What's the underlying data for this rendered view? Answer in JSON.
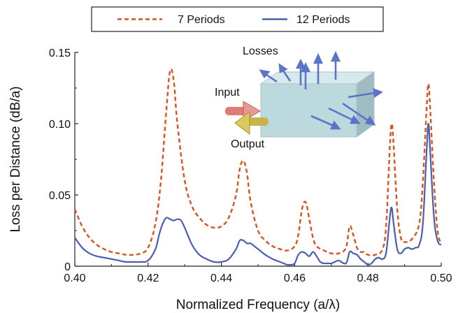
{
  "chart_data": {
    "type": "line",
    "title": "",
    "xlabel": "Normalized Frequency (a/λ)",
    "ylabel": "Loss per Distance (dB/a)",
    "xlim": [
      0.4,
      0.5
    ],
    "ylim": [
      0,
      0.15
    ],
    "xticks": [
      "0.40",
      "0.42",
      "0.44",
      "0.46",
      "0.48",
      "0.50"
    ],
    "yticks": [
      "0",
      "0.05",
      "0.10",
      "0.15"
    ],
    "grid": false,
    "legend_position": "top",
    "series": [
      {
        "name": "7 Periods",
        "color": "#d9531e",
        "style": "dashed",
        "x": [
          0.4,
          0.402,
          0.404,
          0.406,
          0.408,
          0.41,
          0.412,
          0.414,
          0.416,
          0.418,
          0.42,
          0.422,
          0.4235,
          0.425,
          0.426,
          0.427,
          0.428,
          0.43,
          0.432,
          0.434,
          0.436,
          0.438,
          0.44,
          0.442,
          0.444,
          0.445,
          0.446,
          0.447,
          0.448,
          0.45,
          0.452,
          0.454,
          0.456,
          0.458,
          0.46,
          0.461,
          0.462,
          0.463,
          0.464,
          0.465,
          0.466,
          0.468,
          0.47,
          0.472,
          0.474,
          0.475,
          0.476,
          0.477,
          0.478,
          0.479,
          0.48,
          0.482,
          0.484,
          0.485,
          0.486,
          0.4865,
          0.487,
          0.488,
          0.489,
          0.49,
          0.492,
          0.494,
          0.495,
          0.496,
          0.4965,
          0.497,
          0.498,
          0.499,
          0.5
        ],
        "y": [
          0.04,
          0.028,
          0.02,
          0.015,
          0.012,
          0.01,
          0.009,
          0.008,
          0.008,
          0.009,
          0.013,
          0.03,
          0.06,
          0.11,
          0.137,
          0.13,
          0.1,
          0.06,
          0.042,
          0.034,
          0.029,
          0.027,
          0.028,
          0.034,
          0.05,
          0.068,
          0.074,
          0.065,
          0.045,
          0.025,
          0.018,
          0.014,
          0.012,
          0.011,
          0.014,
          0.022,
          0.04,
          0.045,
          0.033,
          0.02,
          0.014,
          0.011,
          0.009,
          0.009,
          0.013,
          0.028,
          0.022,
          0.013,
          0.01,
          0.01,
          0.008,
          0.008,
          0.012,
          0.03,
          0.085,
          0.1,
          0.085,
          0.04,
          0.02,
          0.017,
          0.019,
          0.03,
          0.06,
          0.11,
          0.128,
          0.11,
          0.06,
          0.025,
          0.016
        ]
      },
      {
        "name": "12 Periods",
        "color": "#4a5db0",
        "style": "solid",
        "x": [
          0.4,
          0.402,
          0.404,
          0.406,
          0.408,
          0.41,
          0.412,
          0.414,
          0.416,
          0.418,
          0.42,
          0.422,
          0.423,
          0.424,
          0.425,
          0.426,
          0.427,
          0.428,
          0.429,
          0.43,
          0.432,
          0.434,
          0.436,
          0.438,
          0.44,
          0.442,
          0.444,
          0.445,
          0.446,
          0.447,
          0.448,
          0.449,
          0.45,
          0.452,
          0.454,
          0.456,
          0.457,
          0.458,
          0.459,
          0.46,
          0.461,
          0.462,
          0.463,
          0.464,
          0.465,
          0.466,
          0.467,
          0.468,
          0.469,
          0.47,
          0.471,
          0.472,
          0.474,
          0.475,
          0.476,
          0.477,
          0.478,
          0.479,
          0.48,
          0.481,
          0.482,
          0.483,
          0.484,
          0.485,
          0.486,
          0.4865,
          0.487,
          0.488,
          0.489,
          0.49,
          0.491,
          0.492,
          0.493,
          0.494,
          0.495,
          0.496,
          0.4965,
          0.497,
          0.498,
          0.499,
          0.5
        ],
        "y": [
          0.02,
          0.013,
          0.009,
          0.007,
          0.006,
          0.005,
          0.004,
          0.003,
          0.003,
          0.003,
          0.004,
          0.012,
          0.022,
          0.03,
          0.034,
          0.033,
          0.032,
          0.033,
          0.032,
          0.027,
          0.015,
          0.008,
          0.005,
          0.003,
          0.003,
          0.005,
          0.012,
          0.018,
          0.018,
          0.016,
          0.016,
          0.014,
          0.012,
          0.008,
          0.005,
          0.003,
          0.002,
          0.001,
          0.001,
          0.002,
          0.008,
          0.01,
          0.009,
          0.007,
          0.01,
          0.007,
          0.003,
          0.002,
          0.002,
          0.002,
          0.003,
          0.004,
          0.002,
          0.01,
          0.009,
          0.008,
          0.005,
          0.003,
          0.001,
          0.002,
          0.005,
          0.006,
          0.005,
          0.01,
          0.035,
          0.041,
          0.03,
          0.012,
          0.009,
          0.012,
          0.013,
          0.012,
          0.013,
          0.015,
          0.03,
          0.08,
          0.1,
          0.08,
          0.035,
          0.018,
          0.015
        ]
      }
    ]
  },
  "inset": {
    "losses_label": "Losses",
    "input_label": "Input",
    "output_label": "Output",
    "block_color": "#bcd9de",
    "arrow_color": "#5b74c8"
  }
}
